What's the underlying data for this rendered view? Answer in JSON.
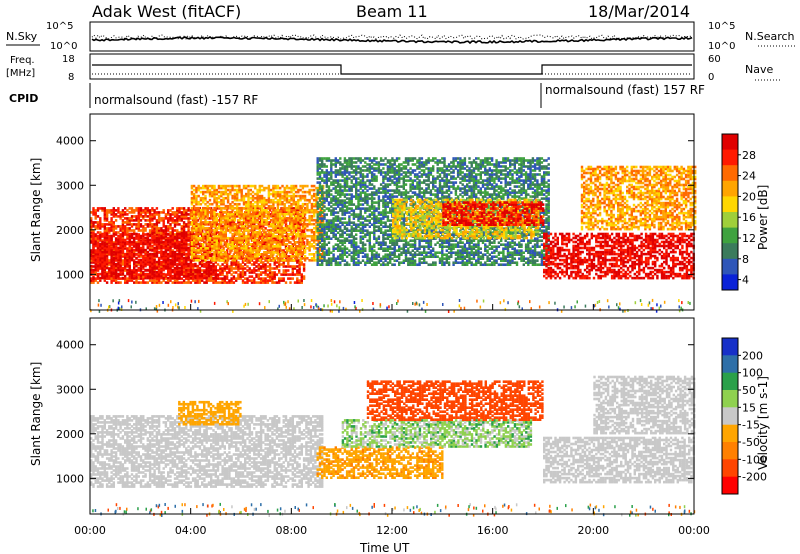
{
  "header": {
    "station": "Adak West (fitACF)",
    "beam": "Beam 11",
    "date": "18/Mar/2014"
  },
  "noise_panel": {
    "left_label": "N.Sky",
    "right_label": "N.Search",
    "left_ticks": [
      "10^5",
      "10^0"
    ],
    "right_ticks": [
      "10^5",
      "10^0"
    ]
  },
  "freq_panel": {
    "left_label_1": "Freq.",
    "left_label_2": "[MHz]",
    "right_label": "Nave",
    "left_ticks": [
      "18",
      "8"
    ],
    "right_ticks": [
      "60",
      "0"
    ]
  },
  "cpid_panel": {
    "label": "CPID",
    "segment_1": "normalsound (fast) -157 RF",
    "segment_2": "normalsound (fast) 157 RF"
  },
  "x_axis": {
    "label": "Time UT",
    "ticks": [
      "00:00",
      "04:00",
      "08:00",
      "12:00",
      "16:00",
      "20:00",
      "00:00"
    ]
  },
  "chart_data": [
    {
      "type": "heatmap",
      "panel": "power",
      "ylabel": "Slant Range [km]",
      "yticks": [
        1000,
        2000,
        3000,
        4000
      ],
      "ylim": [
        200,
        4600
      ],
      "xlim_hours": [
        0,
        24
      ],
      "colorbar_label": "Power [dB]",
      "colorbar_ticks": [
        4,
        8,
        12,
        16,
        20,
        24,
        28
      ],
      "colorbar_colors": [
        "#0a22d8",
        "#2f56b8",
        "#3b7b5c",
        "#3fa23f",
        "#9fcf3a",
        "#ffd700",
        "#ffa500",
        "#ff6a00",
        "#ff1a00",
        "#e00000"
      ],
      "regions": [
        {
          "t": [
            0.0,
            8.5
          ],
          "r": [
            800,
            2500
          ],
          "level": 27
        },
        {
          "t": [
            0.0,
            5.0
          ],
          "r": [
            900,
            1900
          ],
          "level": 30
        },
        {
          "t": [
            4.0,
            9.3
          ],
          "r": [
            1300,
            3000
          ],
          "level": 22
        },
        {
          "t": [
            9.0,
            18.2
          ],
          "r": [
            1200,
            3600
          ],
          "level": 10
        },
        {
          "t": [
            12.0,
            17.8
          ],
          "r": [
            1800,
            2700
          ],
          "level": 19
        },
        {
          "t": [
            14.0,
            18.0
          ],
          "r": [
            2100,
            2600
          ],
          "level": 29
        },
        {
          "t": [
            18.0,
            24.0
          ],
          "r": [
            900,
            1900
          ],
          "level": 30
        },
        {
          "t": [
            19.5,
            24.0
          ],
          "r": [
            2000,
            3400
          ],
          "level": 22
        }
      ]
    },
    {
      "type": "heatmap",
      "panel": "velocity",
      "ylabel": "Slant Range [km]",
      "yticks": [
        1000,
        2000,
        3000,
        4000
      ],
      "ylim": [
        200,
        4600
      ],
      "xlim_hours": [
        0,
        24
      ],
      "colorbar_label": "Velocity [m s-1]",
      "colorbar_ticks": [
        200,
        100,
        50,
        15,
        -15,
        -50,
        -100,
        -200
      ],
      "colorbar_colors": [
        "#1730c8",
        "#2e6fa8",
        "#2aa04a",
        "#8fd14f",
        "#c8c8c8",
        "#ffa500",
        "#ff8000",
        "#ff4500",
        "#ff0000"
      ],
      "regions": [
        {
          "t": [
            0.0,
            9.2
          ],
          "r": [
            800,
            2400
          ],
          "level": 0
        },
        {
          "t": [
            3.5,
            6.0
          ],
          "r": [
            2200,
            2700
          ],
          "level": -30
        },
        {
          "t": [
            9.0,
            14.0
          ],
          "r": [
            1000,
            1700
          ],
          "level": -40
        },
        {
          "t": [
            10.0,
            17.5
          ],
          "r": [
            1700,
            2300
          ],
          "level": 20
        },
        {
          "t": [
            11.0,
            18.0
          ],
          "r": [
            2300,
            3200
          ],
          "level": -150
        },
        {
          "t": [
            18.0,
            24.0
          ],
          "r": [
            900,
            1900
          ],
          "level": 0
        },
        {
          "t": [
            20.0,
            24.0
          ],
          "r": [
            2000,
            3300
          ],
          "level": 0
        }
      ]
    }
  ]
}
